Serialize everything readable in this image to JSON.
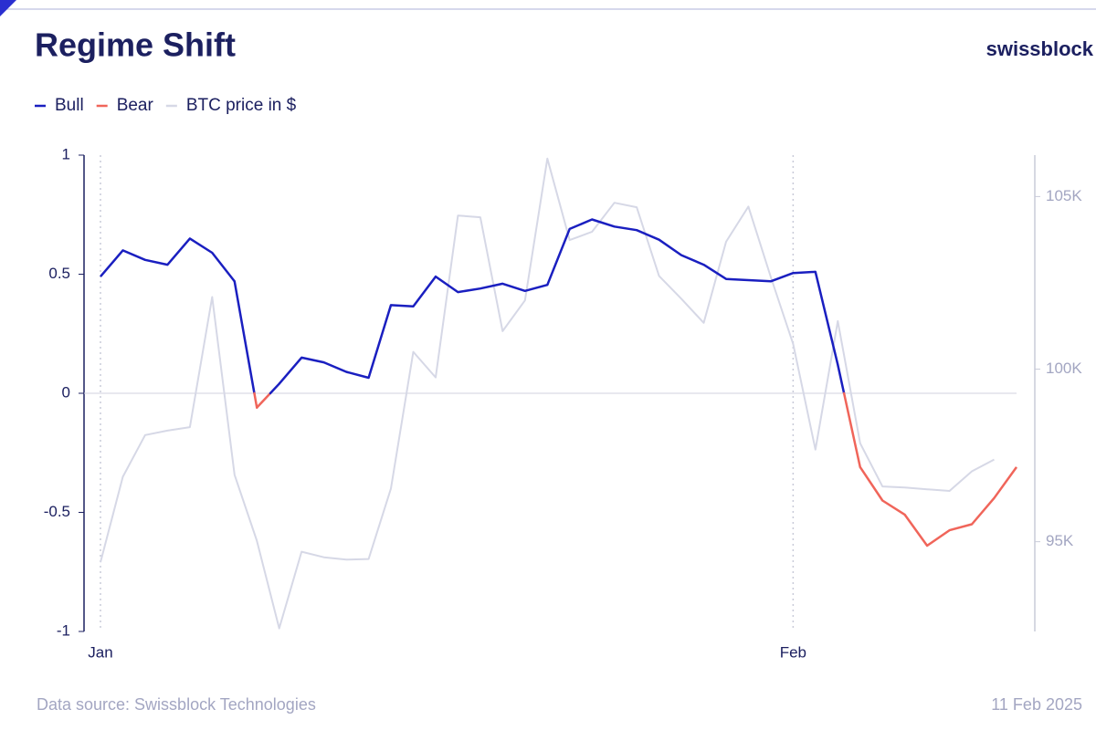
{
  "chart_data": {
    "type": "line",
    "title": "Regime Shift",
    "brand": "swissblock",
    "source": "Data source: Swissblock Technologies",
    "date": "11 Feb 2025",
    "categories": [
      "Jan",
      null,
      null,
      null,
      null,
      null,
      null,
      null,
      null,
      null,
      null,
      null,
      null,
      null,
      null,
      null,
      null,
      null,
      null,
      null,
      null,
      null,
      null,
      null,
      null,
      null,
      null,
      null,
      null,
      null,
      null,
      "Feb",
      null,
      null,
      null,
      null,
      null,
      null,
      null,
      null,
      null,
      null
    ],
    "series": [
      {
        "name": "Bull",
        "color": "#1a1fc0",
        "axis": "y",
        "values": [
          0.49,
          0.6,
          0.56,
          0.54,
          0.65,
          0.59,
          0.47,
          null,
          0.04,
          0.15,
          0.13,
          0.09,
          0.065,
          0.37,
          0.365,
          0.49,
          0.425,
          0.44,
          0.46,
          0.43,
          0.455,
          0.69,
          0.73,
          0.7,
          0.685,
          0.645,
          0.58,
          0.54,
          0.48,
          0.475,
          0.47,
          0.505,
          0.51,
          0.12,
          null,
          null,
          null,
          null,
          null,
          null,
          null,
          null
        ]
      },
      {
        "name": "Bear",
        "color": "#f0655a",
        "axis": "y",
        "values": [
          null,
          null,
          null,
          null,
          null,
          null,
          null,
          -0.06,
          null,
          null,
          null,
          null,
          null,
          null,
          null,
          null,
          null,
          null,
          null,
          null,
          null,
          null,
          null,
          null,
          null,
          null,
          null,
          null,
          null,
          null,
          null,
          null,
          null,
          null,
          -0.31,
          -0.45,
          -0.51,
          -0.64,
          -0.575,
          -0.55,
          -0.44,
          -0.31
        ]
      },
      {
        "name": "BTC price in $",
        "color": "#d6d8e6",
        "axis": "y2",
        "values": [
          94400,
          96880,
          98090,
          98220,
          98320,
          102090,
          96940,
          95030,
          92490,
          94710,
          94550,
          94480,
          94500,
          96540,
          100500,
          99760,
          104450,
          104400,
          101100,
          101990,
          106100,
          103740,
          103980,
          104820,
          104690,
          102700,
          102040,
          101340,
          103690,
          104710,
          102670,
          100730,
          97670,
          101390,
          97850,
          96600,
          96570,
          96520,
          96470,
          97040,
          97380,
          null
        ]
      }
    ],
    "ylim": [
      -1,
      1
    ],
    "yticks": [
      1,
      0.5,
      0,
      -0.5,
      -1
    ],
    "y2lim": [
      92400,
      106200
    ],
    "y2ticks": [
      {
        "value": 95000,
        "label": "95K"
      },
      {
        "value": 100000,
        "label": "100K"
      },
      {
        "value": 105000,
        "label": "105K"
      }
    ],
    "legend": "top-left"
  }
}
